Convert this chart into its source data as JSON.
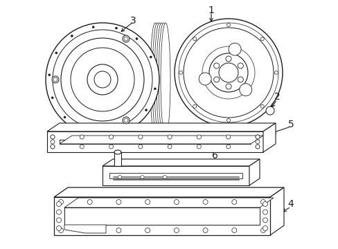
{
  "bg_color": "#ffffff",
  "line_color": "#1a1a1a",
  "lw": 0.8,
  "label_fontsize": 10,
  "fig_w": 4.89,
  "fig_h": 3.6,
  "dpi": 100
}
